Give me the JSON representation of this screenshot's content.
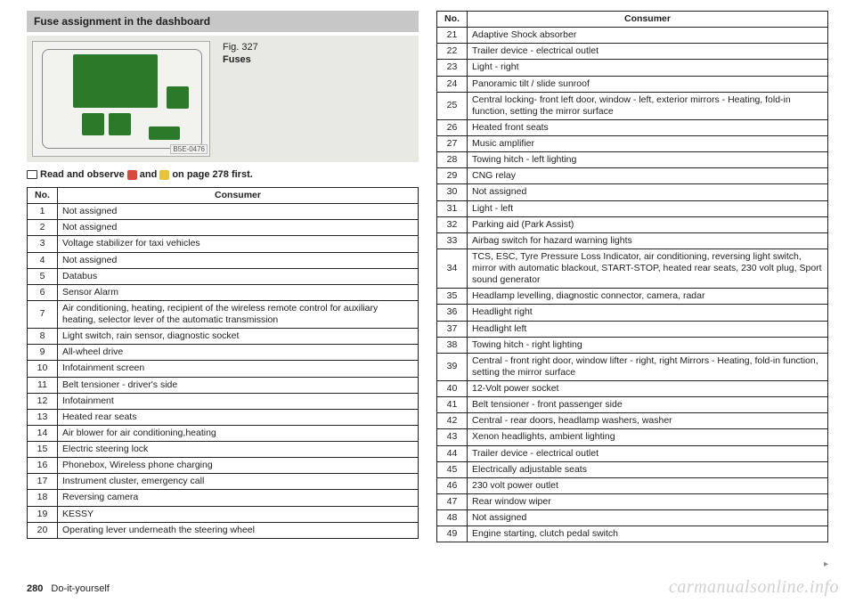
{
  "left": {
    "section_title": "Fuse assignment in the dashboard",
    "figure": {
      "number": "Fig. 327",
      "title": "Fuses",
      "code": "B5E-0476"
    },
    "read_observe_pre": "Read and observe",
    "read_observe_mid": "and",
    "read_observe_post": "on page 278 first.",
    "table": {
      "headers": {
        "no": "No.",
        "consumer": "Consumer"
      },
      "rows": [
        {
          "no": "1",
          "consumer": "Not assigned"
        },
        {
          "no": "2",
          "consumer": "Not assigned"
        },
        {
          "no": "3",
          "consumer": "Voltage stabilizer for taxi vehicles"
        },
        {
          "no": "4",
          "consumer": "Not assigned"
        },
        {
          "no": "5",
          "consumer": "Databus"
        },
        {
          "no": "6",
          "consumer": "Sensor Alarm"
        },
        {
          "no": "7",
          "consumer": "Air conditioning, heating, recipient of the wireless remote control for auxiliary heating, selector lever of the automatic transmission"
        },
        {
          "no": "8",
          "consumer": "Light switch, rain sensor, diagnostic socket"
        },
        {
          "no": "9",
          "consumer": "All-wheel drive"
        },
        {
          "no": "10",
          "consumer": "Infotainment screen"
        },
        {
          "no": "11",
          "consumer": "Belt tensioner - driver's side"
        },
        {
          "no": "12",
          "consumer": "Infotainment"
        },
        {
          "no": "13",
          "consumer": "Heated rear seats"
        },
        {
          "no": "14",
          "consumer": "Air blower for air conditioning,heating"
        },
        {
          "no": "15",
          "consumer": "Electric steering lock"
        },
        {
          "no": "16",
          "consumer": "Phonebox, Wireless phone charging"
        },
        {
          "no": "17",
          "consumer": "Instrument cluster, emergency call"
        },
        {
          "no": "18",
          "consumer": "Reversing camera"
        },
        {
          "no": "19",
          "consumer": "KESSY"
        },
        {
          "no": "20",
          "consumer": "Operating lever underneath the steering wheel"
        }
      ]
    }
  },
  "right": {
    "table": {
      "headers": {
        "no": "No.",
        "consumer": "Consumer"
      },
      "rows": [
        {
          "no": "21",
          "consumer": "Adaptive Shock absorber"
        },
        {
          "no": "22",
          "consumer": "Trailer device - electrical outlet"
        },
        {
          "no": "23",
          "consumer": "Light - right"
        },
        {
          "no": "24",
          "consumer": "Panoramic tilt / slide sunroof"
        },
        {
          "no": "25",
          "consumer": "Central locking- front left door, window - left, exterior mirrors - Heating, fold-in function, setting the mirror surface"
        },
        {
          "no": "26",
          "consumer": "Heated front seats"
        },
        {
          "no": "27",
          "consumer": "Music amplifier"
        },
        {
          "no": "28",
          "consumer": "Towing hitch - left lighting"
        },
        {
          "no": "29",
          "consumer": "CNG relay"
        },
        {
          "no": "30",
          "consumer": "Not assigned"
        },
        {
          "no": "31",
          "consumer": "Light - left"
        },
        {
          "no": "32",
          "consumer": "Parking aid (Park Assist)"
        },
        {
          "no": "33",
          "consumer": "Airbag switch for hazard warning lights"
        },
        {
          "no": "34",
          "consumer": "TCS, ESC, Tyre Pressure Loss Indicator, air conditioning, reversing light switch, mirror with automatic blackout, START-STOP, heated rear seats, 230 volt plug, Sport sound generator"
        },
        {
          "no": "35",
          "consumer": "Headlamp levelling, diagnostic connector, camera, radar"
        },
        {
          "no": "36",
          "consumer": "Headlight right"
        },
        {
          "no": "37",
          "consumer": "Headlight left"
        },
        {
          "no": "38",
          "consumer": "Towing hitch - right lighting"
        },
        {
          "no": "39",
          "consumer": "Central - front right door, window lifter - right, right Mirrors - Heating, fold-in function, setting the mirror surface"
        },
        {
          "no": "40",
          "consumer": "12-Volt power socket"
        },
        {
          "no": "41",
          "consumer": "Belt tensioner - front passenger side"
        },
        {
          "no": "42",
          "consumer": "Central - rear doors, headlamp washers, washer"
        },
        {
          "no": "43",
          "consumer": "Xenon headlights, ambient lighting"
        },
        {
          "no": "44",
          "consumer": "Trailer device - electrical outlet"
        },
        {
          "no": "45",
          "consumer": "Electrically adjustable seats"
        },
        {
          "no": "46",
          "consumer": "230 volt power outlet"
        },
        {
          "no": "47",
          "consumer": "Rear window wiper"
        },
        {
          "no": "48",
          "consumer": "Not assigned"
        },
        {
          "no": "49",
          "consumer": "Engine starting, clutch pedal switch"
        }
      ]
    }
  },
  "footer": {
    "page_no": "280",
    "section": "Do-it-yourself"
  },
  "watermark": "carmanualsonline.info",
  "continue_arrow": "▸"
}
